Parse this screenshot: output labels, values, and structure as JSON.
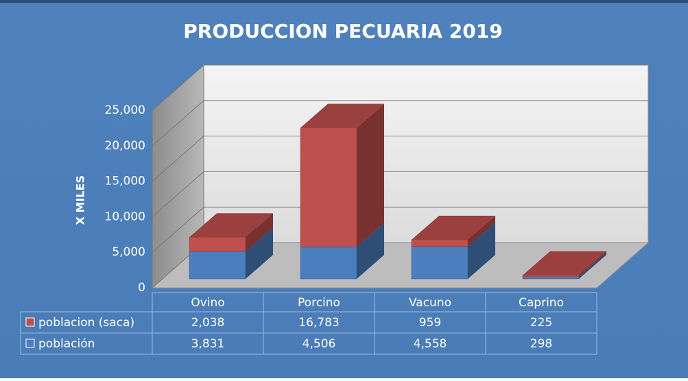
{
  "chart_data": {
    "type": "bar3d_stacked",
    "title": "PRODUCCION PECUARIA 2019",
    "y_label": "X MILES",
    "categories": [
      "Ovino",
      "Porcino",
      "Vacuno",
      "Caprino"
    ],
    "series": [
      {
        "name": "población",
        "color": "#4a7ebf",
        "values": [
          3831,
          4506,
          4558,
          298
        ],
        "value_labels": [
          "3,831",
          "4,506",
          "4,558",
          "298"
        ]
      },
      {
        "name": "poblacion (saca)",
        "color": "#c0504d",
        "values": [
          2038,
          16783,
          959,
          225
        ],
        "value_labels": [
          "2,038",
          "16,783",
          "959",
          "225"
        ]
      }
    ],
    "ylim": [
      0,
      25000
    ],
    "yticks": [
      0,
      {
        "value": 5000,
        "label": "5,000"
      },
      {
        "value": 10000,
        "label": "10,000"
      },
      {
        "value": 15000,
        "label": "15,000"
      },
      {
        "value": 20000,
        "label": "20,000"
      },
      {
        "value": 25000,
        "label": "25,000"
      }
    ],
    "grid": true
  }
}
